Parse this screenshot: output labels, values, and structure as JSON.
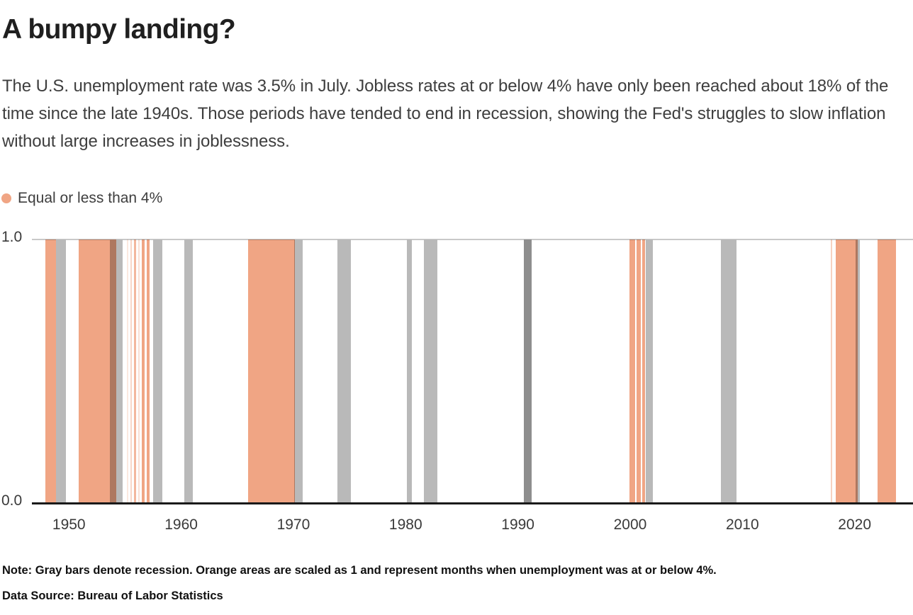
{
  "header": {
    "title": "A bumpy landing?",
    "subtitle": "The U.S. unemployment rate was 3.5% in July. Jobless rates at or below 4% have only been reached about 18% of the time since the late 1940s. Those periods have tended to end in recession, showing the Fed's struggles to slow inflation without large increases in joblessness."
  },
  "legend": {
    "label": "Equal or less than 4%",
    "dot_color": "#F0A584"
  },
  "footer": {
    "note": "Note: Gray bars denote recession. Orange areas are scaled as 1 and represent months when unemployment was at or below 4%.",
    "source": "Data Source: Bureau of Labor Statistics"
  },
  "chart_data": {
    "type": "bar",
    "title": "A bumpy landing?",
    "description": "Timeline strips: orange spans are months with U.S. unemployment at or below 4% (scaled to value 1), gray spans are NBER recessions.",
    "x_domain": [
      1946.7,
      2025.2
    ],
    "ylim": [
      0,
      1
    ],
    "y_axis": {
      "top_label": "1.0",
      "bottom_label": "0.0"
    },
    "x_ticks": [
      1950,
      1960,
      1970,
      1980,
      1990,
      2000,
      2010,
      2020
    ],
    "colors": {
      "below4": "#F0A584",
      "recession": "#B9B9B9",
      "recession_dark": "#8E8E8E",
      "axis": "#1A1A1A",
      "gridline": "#C9C9C9"
    },
    "below_4pct_periods": [
      {
        "start": 1947.9,
        "end": 1948.85,
        "opacity": 1
      },
      {
        "start": 1950.88,
        "end": 1954.23,
        "opacity": 1
      },
      {
        "start": 1955.18,
        "end": 1955.31,
        "opacity": 0.25
      },
      {
        "start": 1955.5,
        "end": 1955.62,
        "opacity": 0.45
      },
      {
        "start": 1955.81,
        "end": 1956.0,
        "opacity": 0.8
      },
      {
        "start": 1956.19,
        "end": 1956.32,
        "opacity": 0.35
      },
      {
        "start": 1956.51,
        "end": 1956.76,
        "opacity": 1
      },
      {
        "start": 1956.95,
        "end": 1957.2,
        "opacity": 1
      },
      {
        "start": 1965.97,
        "end": 1970.15,
        "opacity": 1
      },
      {
        "start": 1999.92,
        "end": 2000.42,
        "opacity": 1
      },
      {
        "start": 2000.55,
        "end": 2000.92,
        "opacity": 1
      },
      {
        "start": 2001.05,
        "end": 2001.3,
        "opacity": 1
      },
      {
        "start": 2017.85,
        "end": 2017.97,
        "opacity": 0.5
      },
      {
        "start": 2018.3,
        "end": 2020.3,
        "opacity": 1
      },
      {
        "start": 2022.05,
        "end": 2023.7,
        "opacity": 1
      }
    ],
    "recessions": [
      {
        "start": 1948.85,
        "end": 1949.75,
        "shade": "normal"
      },
      {
        "start": 1953.66,
        "end": 1954.8,
        "shade": "normal"
      },
      {
        "start": 1957.52,
        "end": 1958.3,
        "shade": "normal"
      },
      {
        "start": 1960.3,
        "end": 1961.05,
        "shade": "normal"
      },
      {
        "start": 1970.05,
        "end": 1970.82,
        "shade": "normal"
      },
      {
        "start": 1973.95,
        "end": 1975.15,
        "shade": "normal"
      },
      {
        "start": 1980.1,
        "end": 1980.55,
        "shade": "normal"
      },
      {
        "start": 1981.6,
        "end": 1982.85,
        "shade": "normal"
      },
      {
        "start": 1990.5,
        "end": 1991.25,
        "shade": "dark"
      },
      {
        "start": 2001.38,
        "end": 2002.0,
        "shade": "normal"
      },
      {
        "start": 2008.1,
        "end": 2009.45,
        "shade": "normal"
      },
      {
        "start": 2020.1,
        "end": 2020.45,
        "shade": "normal"
      }
    ]
  }
}
